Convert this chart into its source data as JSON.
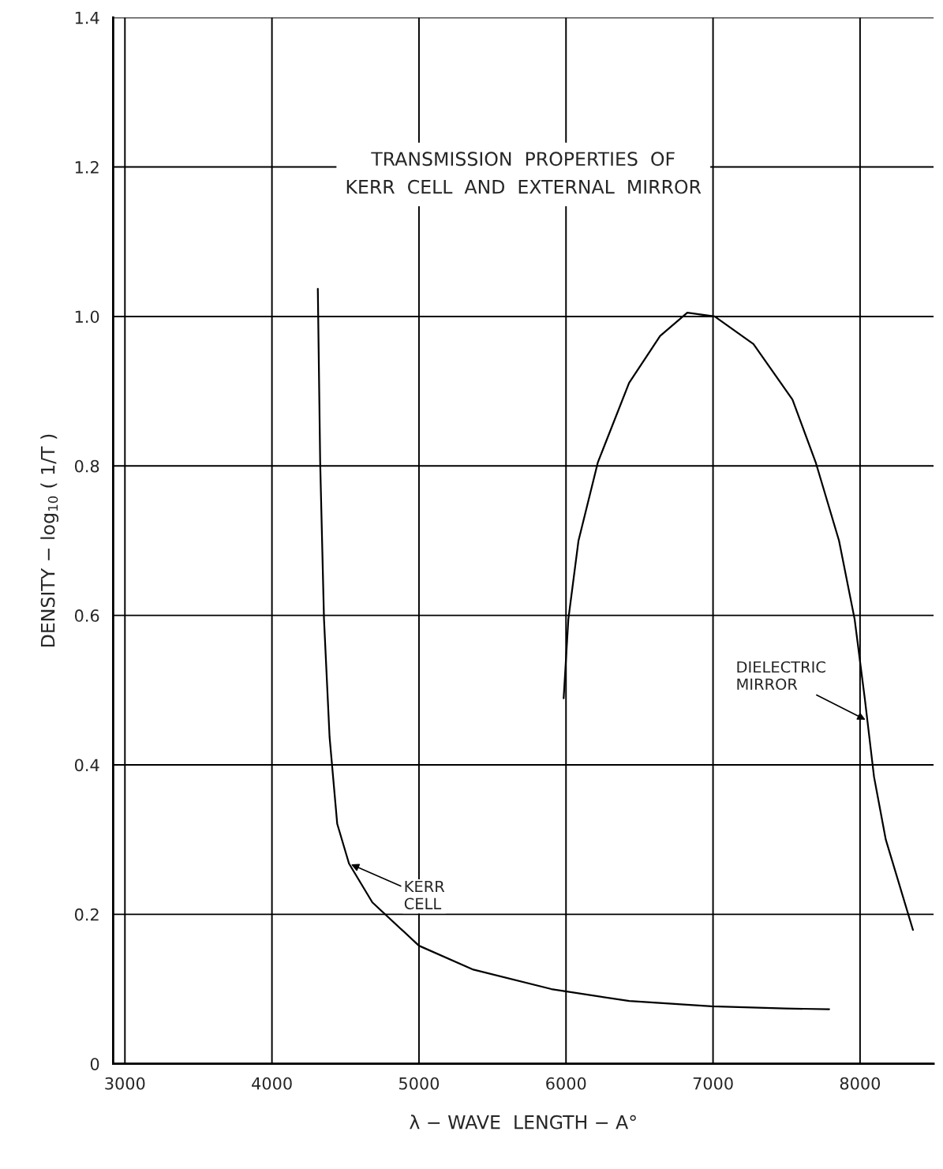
{
  "chart_data": {
    "type": "line",
    "title": "TRANSMISSION  PROPERTIES  OF\nKERR  CELL  AND  EXTERNAL  MIRROR",
    "xlabel": "λ − WAVE  LENGTH − A°",
    "ylabel": "DENSITY − log$_{10}$ ( 1/T )",
    "xlim": [
      2920,
      8500
    ],
    "ylim": [
      0,
      1.4
    ],
    "xticks": [
      3000,
      4000,
      5000,
      6000,
      7000,
      8000
    ],
    "yticks": [
      0,
      0.2,
      0.4,
      0.6,
      0.8,
      {
        "value": 1,
        "label": "1.0"
      },
      1.2,
      1.4
    ],
    "grid": true,
    "legend": false,
    "marker": "none",
    "line_style": "solid",
    "series": [
      {
        "color": "#000000",
        "x": [
          4312,
          4328,
          4354,
          4392,
          4444,
          4524,
          4683,
          5000,
          5370,
          5900,
          6430,
          6990,
          7490,
          7790
        ],
        "values": [
          1.037,
          0.805,
          0.595,
          0.437,
          0.321,
          0.268,
          0.216,
          0.158,
          0.126,
          0.1,
          0.084,
          0.077,
          0.074,
          0.073
        ]
      },
      {
        "color": "#000000",
        "x": [
          5984,
          6016,
          6085,
          6217,
          6429,
          6640,
          6825,
          7011,
          7275,
          7540,
          7698,
          7857,
          7963,
          8032,
          8095,
          8175,
          8360
        ],
        "values": [
          0.489,
          0.595,
          0.7,
          0.805,
          0.911,
          0.974,
          1.005,
          1.0,
          0.963,
          0.889,
          0.805,
          0.7,
          0.595,
          0.489,
          0.384,
          0.3,
          0.179
        ]
      }
    ],
    "annotations": [
      {
        "text": "KERR\nCELL",
        "x": 4524,
        "y": 0.268
      },
      {
        "text": "DIELECTRIC\nMIRROR",
        "x": 8050,
        "y": 0.459
      }
    ]
  }
}
